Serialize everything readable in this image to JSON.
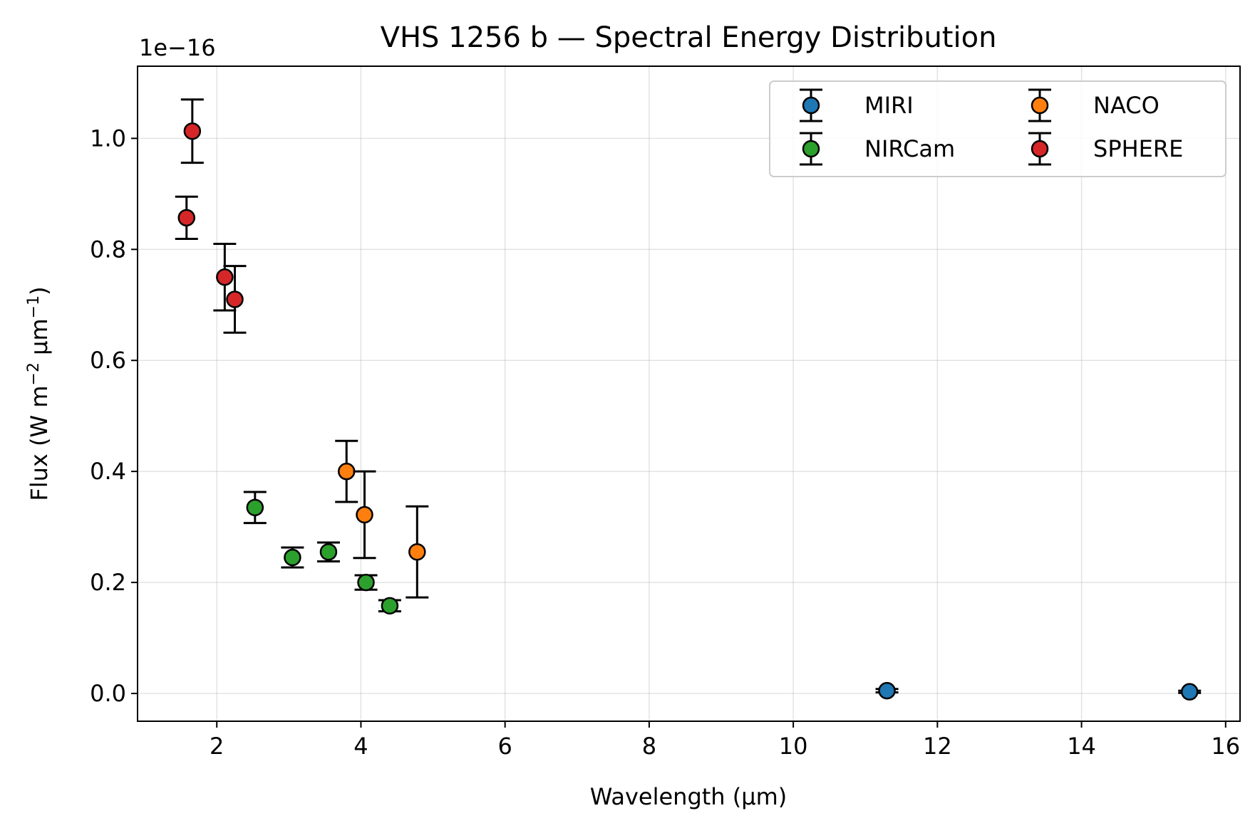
{
  "chart_data": {
    "type": "scatter",
    "title": "VHS 1256 b — Spectral Energy Distribution",
    "xlabel": "Wavelength (μm)",
    "ylabel_main": "Flux (W m",
    "ylabel_sup1": "−2",
    "ylabel_mid": " μm",
    "ylabel_sup2": "−1",
    "ylabel_end": ")",
    "y_offset_label": "1e−16",
    "xlim": [
      0.9,
      16.2
    ],
    "ylim": [
      -0.05,
      1.13
    ],
    "xticks": [
      2,
      4,
      6,
      8,
      10,
      12,
      14,
      16
    ],
    "xtick_labels": [
      "2",
      "4",
      "6",
      "8",
      "10",
      "12",
      "14",
      "16"
    ],
    "yticks": [
      0.0,
      0.2,
      0.4,
      0.6,
      0.8,
      1.0
    ],
    "ytick_labels": [
      "0.0",
      "0.2",
      "0.4",
      "0.6",
      "0.8",
      "1.0"
    ],
    "grid": true,
    "legend_position": "top-right",
    "legend_columns": 2,
    "series": [
      {
        "name": "MIRI",
        "color": "#1f77b4",
        "points": [
          {
            "x": 11.3,
            "y": 0.005,
            "err": 0.003
          },
          {
            "x": 15.5,
            "y": 0.003,
            "err": 0.002
          }
        ]
      },
      {
        "name": "NACO",
        "color": "#ff7f0e",
        "points": [
          {
            "x": 3.8,
            "y": 0.4,
            "err": 0.055
          },
          {
            "x": 4.05,
            "y": 0.322,
            "err": 0.078
          },
          {
            "x": 4.78,
            "y": 0.255,
            "err": 0.082
          }
        ]
      },
      {
        "name": "NIRCam",
        "color": "#2ca02c",
        "points": [
          {
            "x": 2.53,
            "y": 0.335,
            "err": 0.028
          },
          {
            "x": 3.05,
            "y": 0.245,
            "err": 0.018
          },
          {
            "x": 3.55,
            "y": 0.255,
            "err": 0.017
          },
          {
            "x": 4.07,
            "y": 0.2,
            "err": 0.013
          },
          {
            "x": 4.4,
            "y": 0.158,
            "err": 0.01
          }
        ]
      },
      {
        "name": "SPHERE",
        "color": "#d62728",
        "points": [
          {
            "x": 1.66,
            "y": 1.013,
            "err": 0.057
          },
          {
            "x": 1.58,
            "y": 0.857,
            "err": 0.038
          },
          {
            "x": 2.11,
            "y": 0.75,
            "err": 0.06
          },
          {
            "x": 2.25,
            "y": 0.71,
            "err": 0.06
          }
        ]
      }
    ]
  }
}
